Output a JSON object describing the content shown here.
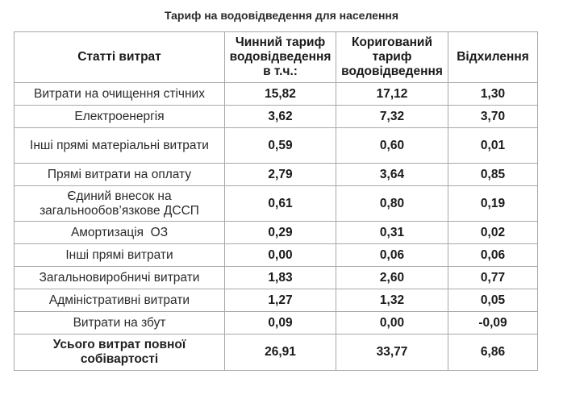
{
  "title": "Тариф на водовідведення для населення",
  "headers": {
    "col1": "Статті витрат",
    "col2": "Чинний тариф водовідведення в т.ч.:",
    "col3": "Коригований тариф водовідведення",
    "col4": "Відхилення"
  },
  "rows": [
    {
      "label": "Витрати на очищення стічних",
      "current": "15,82",
      "adjusted": "17,12",
      "deviation": "1,30"
    },
    {
      "label": "Електроенергія",
      "current": "3,62",
      "adjusted": "7,32",
      "deviation": "3,70"
    },
    {
      "label": "Інші прямі матеріальні витрати",
      "current": "0,59",
      "adjusted": "0,60",
      "deviation": "0,01"
    },
    {
      "label": "Прямі витрати на оплату",
      "current": "2,79",
      "adjusted": "3,64",
      "deviation": "0,85"
    },
    {
      "label": "Єдиний внесок на загальнообов’язкове ДССП",
      "current": "0,61",
      "adjusted": "0,80",
      "deviation": "0,19"
    },
    {
      "label": "Амортизація  ОЗ",
      "current": "0,29",
      "adjusted": "0,31",
      "deviation": "0,02"
    },
    {
      "label": "Інші прямі витрати",
      "current": "0,00",
      "adjusted": "0,06",
      "deviation": "0,06"
    },
    {
      "label": "Загальновиробничі витрати",
      "current": "1,83",
      "adjusted": "2,60",
      "deviation": "0,77"
    },
    {
      "label": "Адміністративні витрати",
      "current": "1,27",
      "adjusted": "1,32",
      "deviation": "0,05"
    },
    {
      "label": "Витрати на збут",
      "current": "0,09",
      "adjusted": "0,00",
      "deviation": "-0,09"
    }
  ],
  "total": {
    "label": "Усього витрат повної собівартості",
    "current": "26,91",
    "adjusted": "33,77",
    "deviation": "6,86"
  }
}
